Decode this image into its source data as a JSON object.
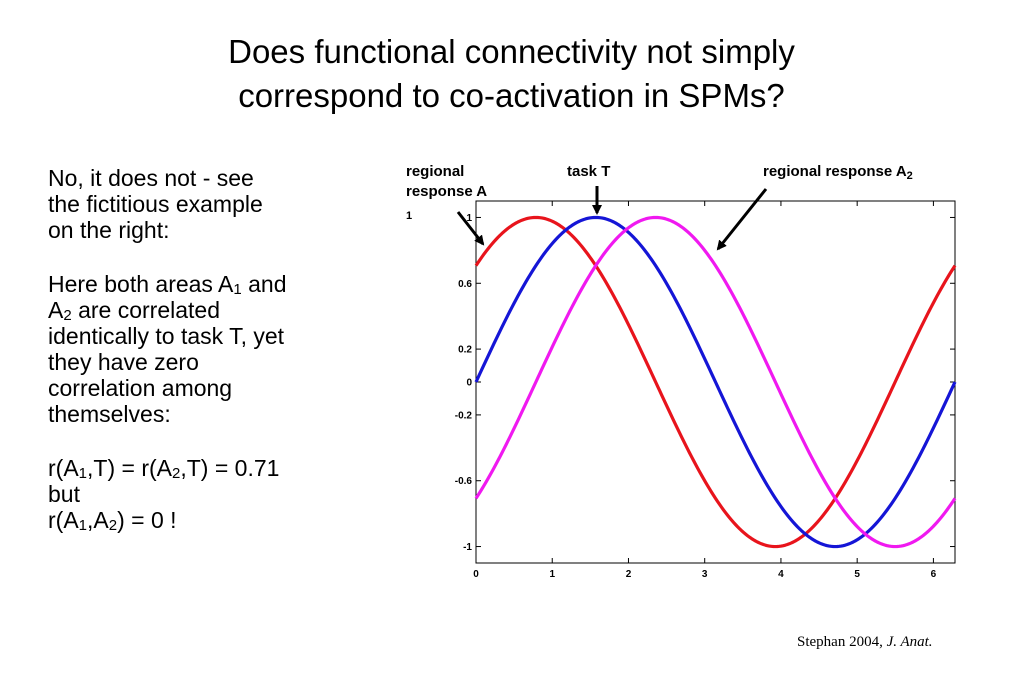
{
  "slide": {
    "title_line1": "Does functional connectivity not simply",
    "title_line2": "correspond to co-activation in SPMs?",
    "para1": [
      "No, it does not - see",
      "the fictitious example",
      "on the right:"
    ],
    "para2": {
      "l1a": "Here both areas A",
      "l1sub": "1",
      "l1b": " and",
      "l2a": "A",
      "l2sub": "2",
      "l2b": " are correlated",
      "l3": "identically to task T, yet",
      "l4": "they have zero",
      "l5": "correlation among",
      "l6": "themselves:"
    },
    "para3": {
      "l1a": "r(A",
      "l1s1": "1",
      "l1b": ",T) = r(A",
      "l1s2": "2",
      "l1c": ",T) = 0.71",
      "l2": "but",
      "l3a": "r(A",
      "l3s1": "1",
      "l3b": ",A",
      "l3s2": "2",
      "l3c": ") = 0 !"
    },
    "citation_text": "Stephan 2004, ",
    "citation_journal": "J. Anat."
  },
  "labels": {
    "a1_line1": "regional",
    "a1_line2": "response A",
    "a1_sub": "1",
    "task": "task T",
    "a2": "regional response A",
    "a2_sub": "2"
  },
  "chart_data": {
    "type": "line",
    "title": "",
    "xlabel": "",
    "ylabel": "",
    "xlim": [
      0,
      6.2832
    ],
    "ylim": [
      -1.1,
      1.1
    ],
    "xticks": [
      0,
      1,
      2,
      3,
      4,
      5,
      6
    ],
    "yticks": [
      1,
      0.6,
      0.2,
      0,
      -0.2,
      -0.6,
      -1
    ],
    "ytick_labels": [
      "1",
      "0.6",
      "0.2",
      "0",
      "-0.2",
      "-0.6",
      "-1"
    ],
    "series": [
      {
        "name": "regional response A1",
        "color": "#e8141c",
        "function": "sin(x + pi/4)",
        "x": [
          0,
          0.785,
          1.571,
          2.356,
          3.142,
          3.927,
          4.712,
          5.498,
          6.283
        ],
        "values": [
          0.71,
          1.0,
          0.71,
          0.0,
          -0.71,
          -1.0,
          -0.71,
          0.0,
          0.71
        ]
      },
      {
        "name": "task T",
        "color": "#1515d6",
        "function": "sin(x)",
        "x": [
          0,
          0.785,
          1.571,
          2.356,
          3.142,
          3.927,
          4.712,
          5.498,
          6.283
        ],
        "values": [
          0.0,
          0.71,
          1.0,
          0.71,
          0.0,
          -0.71,
          -1.0,
          -0.71,
          0.0
        ]
      },
      {
        "name": "regional response A2",
        "color": "#f019f0",
        "function": "sin(x - pi/4)",
        "x": [
          0,
          0.785,
          1.571,
          2.356,
          3.142,
          3.927,
          4.712,
          5.498,
          6.283
        ],
        "values": [
          -0.71,
          0.0,
          0.71,
          1.0,
          0.71,
          0.0,
          -0.71,
          -1.0,
          -0.71
        ]
      }
    ],
    "grid": false,
    "legend": "none"
  }
}
